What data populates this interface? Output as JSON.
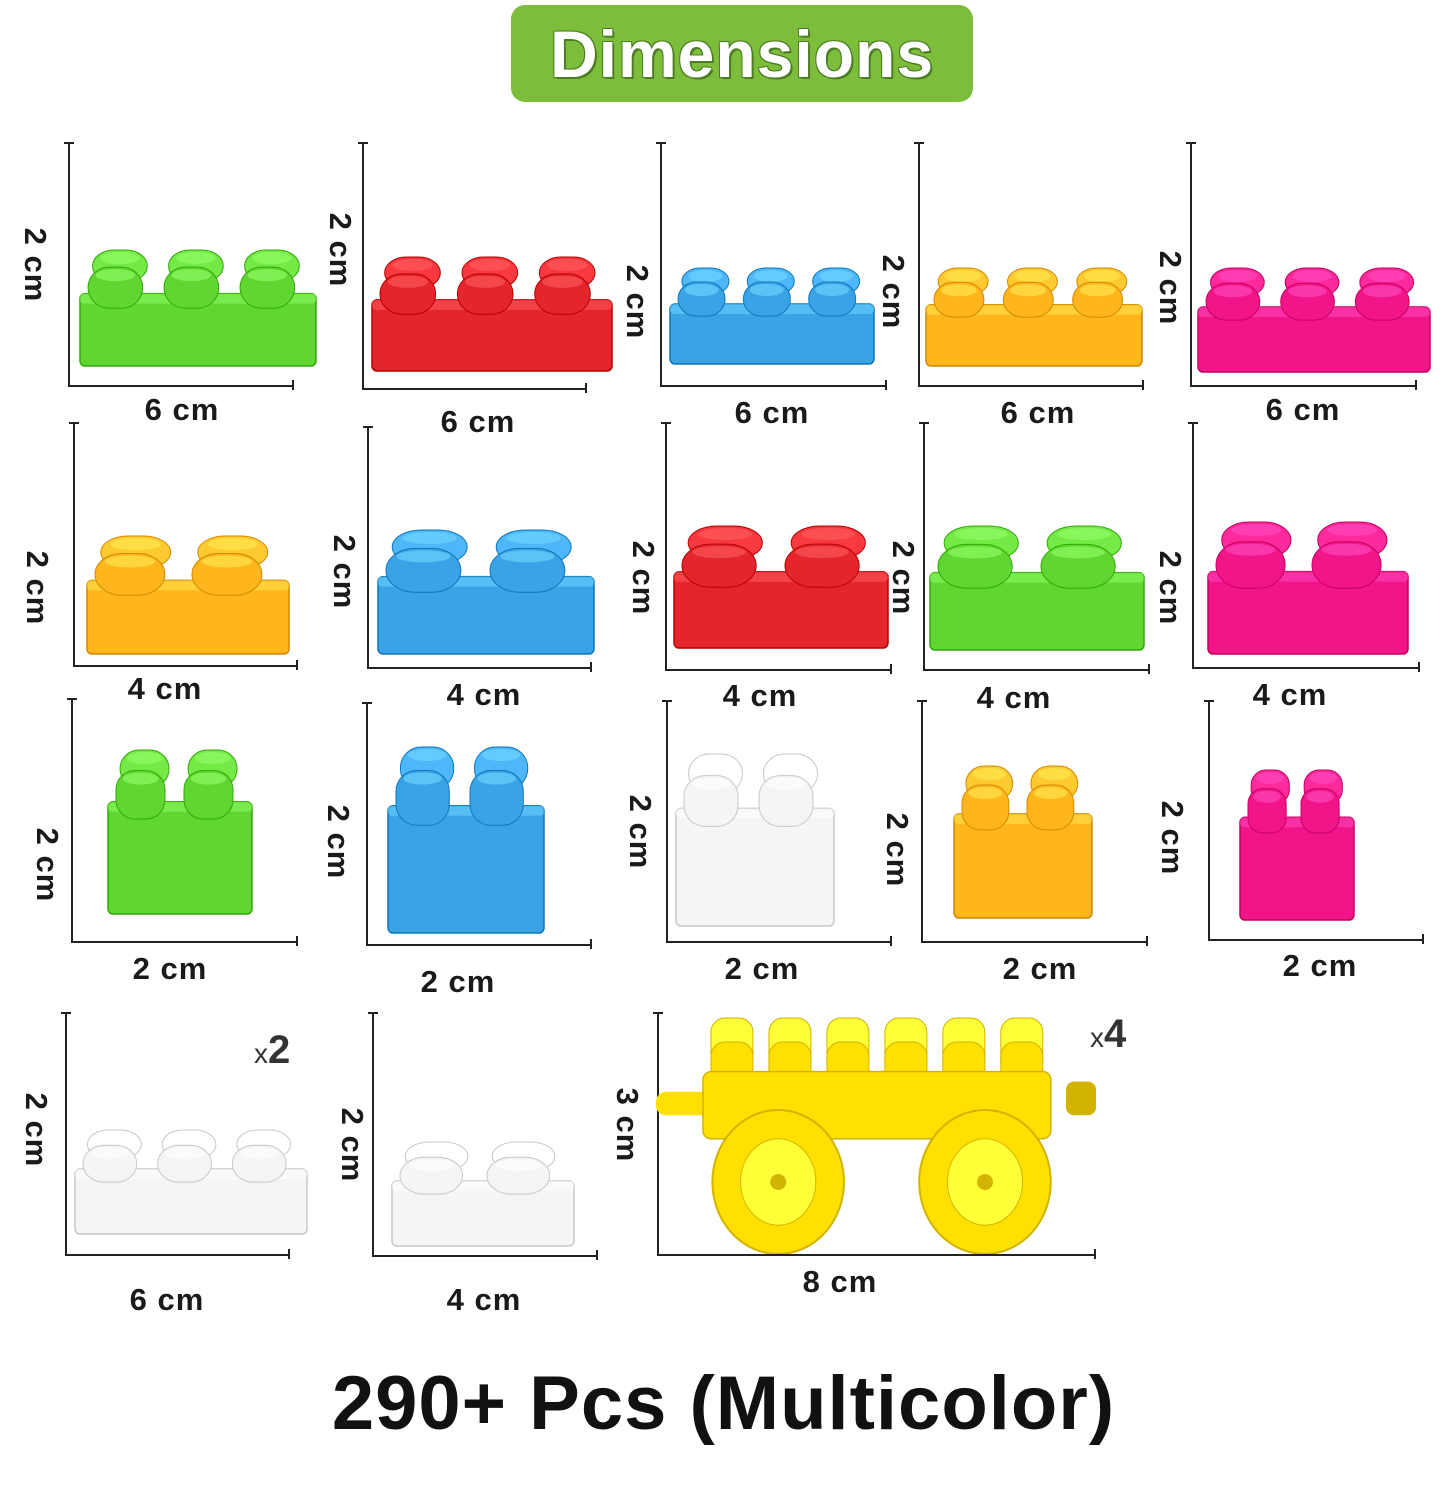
{
  "title": "Dimensions",
  "footer": "290+ Pcs (Multicolor)",
  "colors": {
    "green": "#5fd632",
    "red": "#e4262c",
    "blue": "#3aa3e6",
    "orange": "#ffb51c",
    "pink": "#f2158a",
    "white": "#f5f5f5",
    "yellow": "#ffe000",
    "banner": "#7cbd3c"
  },
  "blocks": [
    {
      "name": "green-6x2-brick",
      "color": "green",
      "studs": 6,
      "width_label": "6 cm",
      "height_label": "2 cm"
    },
    {
      "name": "red-6x2-brick",
      "color": "red",
      "studs": 6,
      "width_label": "6 cm",
      "height_label": "2 cm"
    },
    {
      "name": "blue-6x2-brick",
      "color": "blue",
      "studs": 6,
      "width_label": "6 cm",
      "height_label": "2 cm"
    },
    {
      "name": "orange-6x2-brick",
      "color": "orange",
      "studs": 6,
      "width_label": "6 cm",
      "height_label": "2 cm"
    },
    {
      "name": "pink-6x2-brick",
      "color": "pink",
      "studs": 6,
      "width_label": "6 cm",
      "height_label": "2 cm"
    },
    {
      "name": "orange-4x2-brick",
      "color": "orange",
      "studs": 4,
      "width_label": "4 cm",
      "height_label": "2 cm"
    },
    {
      "name": "blue-4x2-brick",
      "color": "blue",
      "studs": 4,
      "width_label": "4 cm",
      "height_label": "2 cm"
    },
    {
      "name": "red-4x2-brick",
      "color": "red",
      "studs": 4,
      "width_label": "4 cm",
      "height_label": "2 cm"
    },
    {
      "name": "green-4x2-brick",
      "color": "green",
      "studs": 4,
      "width_label": "4 cm",
      "height_label": "2 cm"
    },
    {
      "name": "pink-4x2-brick",
      "color": "pink",
      "studs": 4,
      "width_label": "4 cm",
      "height_label": "2 cm"
    },
    {
      "name": "green-2x2-brick",
      "color": "green",
      "studs": 2,
      "width_label": "2 cm",
      "height_label": "2 cm"
    },
    {
      "name": "blue-2x2-brick",
      "color": "blue",
      "studs": 2,
      "width_label": "2 cm",
      "height_label": "2 cm"
    },
    {
      "name": "white-2x2-brick",
      "color": "white",
      "studs": 2,
      "width_label": "2 cm",
      "height_label": "2 cm"
    },
    {
      "name": "orange-2x2-brick",
      "color": "orange",
      "studs": 2,
      "width_label": "2 cm",
      "height_label": "2 cm"
    },
    {
      "name": "pink-2x2-brick",
      "color": "pink",
      "studs": 2,
      "width_label": "2 cm",
      "height_label": "2 cm"
    },
    {
      "name": "white-6x2-brick",
      "color": "white",
      "studs": 6,
      "width_label": "6 cm",
      "height_label": "2 cm",
      "qty": "2"
    },
    {
      "name": "white-4x2-brick",
      "color": "white",
      "studs": 4,
      "width_label": "4 cm",
      "height_label": "2 cm"
    },
    {
      "name": "yellow-wheel-base",
      "color": "yellow",
      "studs": 8,
      "width_label": "8 cm",
      "height_label": "3 cm",
      "qty": "4",
      "wheels": true
    }
  ],
  "qty_prefix": "x"
}
